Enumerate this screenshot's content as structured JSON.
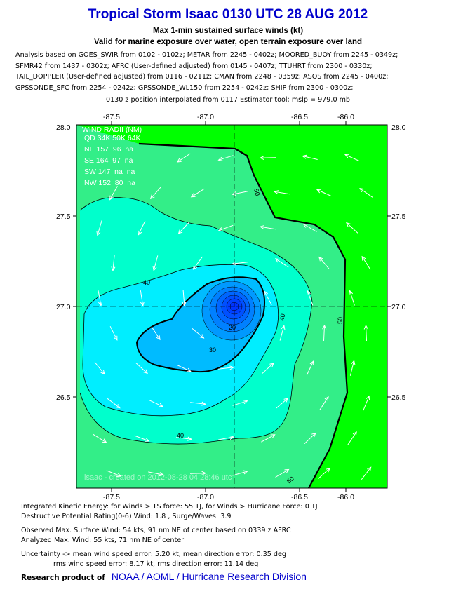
{
  "header": {
    "title": "Tropical Storm Isaac 0130 UTC 28 AUG 2012",
    "subtitle1": "Max 1-min sustained surface winds (kt)",
    "subtitle2": "Valid for marine exposure over water, open terrain exposure over land"
  },
  "analysis_lines": [
    "Analysis based on GOES_SWIR from 0102 - 0102z; METAR from 2245 - 0402z; MOORED_BUOY from 2245 - 0349z;",
    "SFMR42 from 1437 - 0302z; AFRC (User-defined adjusted) from 0145 - 0407z; TTUHRT from 2300 - 0330z;",
    "TAIL_DOPPLER (User-defined adjusted) from 0116 - 0211z; CMAN from 2248 - 0359z; ASOS from 2245 - 0400z;",
    "GPSSONDE_SFC from 2254 - 0242z; GPSSONDE_WL150 from 2254 - 0242z; SHIP from 2300 - 0300z;"
  ],
  "position_line": "0130 z position interpolated from 0117 Estimator tool; mslp = 979.0 mb",
  "map": {
    "lon_ticks": [
      "-87.5",
      "-87.0",
      "-86.5",
      "-86.0"
    ],
    "lat_ticks": [
      "28.0",
      "27.5",
      "27.0",
      "26.5"
    ],
    "center": {
      "lon": -86.72,
      "lat": 27.0
    },
    "colors": {
      "land_green": "#00ff00",
      "band_40_50": "#33ee88",
      "band_30_40": "#00ffcc",
      "band_20_30": "#00eeff",
      "core": "#0033ff"
    },
    "contour_labels": [
      "50",
      "50",
      "40",
      "40",
      "40",
      "30",
      "20",
      "50"
    ],
    "wind_radii": {
      "title": "WIND RADII (NM)",
      "header": "QD 34K 50K 64K",
      "rows": [
        "NE 157  96  na",
        "SE 164  97  na",
        "SW 147  na  na",
        "NW 152  80  na"
      ]
    },
    "watermark": "isaac - created on 2012-08-28 04:28:46 utc"
  },
  "footer": {
    "ike": "Integrated Kinetic Energy: for Winds > TS force: 55 TJ, for Winds > Hurricane Force: 0 TJ",
    "dpr": "Destructive Potential Rating(0-6)  Wind: 1.8 , Surge/Waves: 3.9",
    "observed": "Observed Max. Surface Wind: 54 kts, 91 nm NE of center based on 0339 z AFRC",
    "analyzed": "Analyzed Max. Wind: 55 kts, 71 nm  NE of center",
    "uncertainty1": "Uncertainty -> mean wind speed error: 5.20 kt, mean direction error: 0.35 deg",
    "uncertainty2": "rms wind speed error: 8.17 kt, rms direction error: 11.14 deg"
  },
  "credit": {
    "label": "Research product of",
    "link": "NOAA  /  AOML  /  Hurricane Research Division"
  }
}
